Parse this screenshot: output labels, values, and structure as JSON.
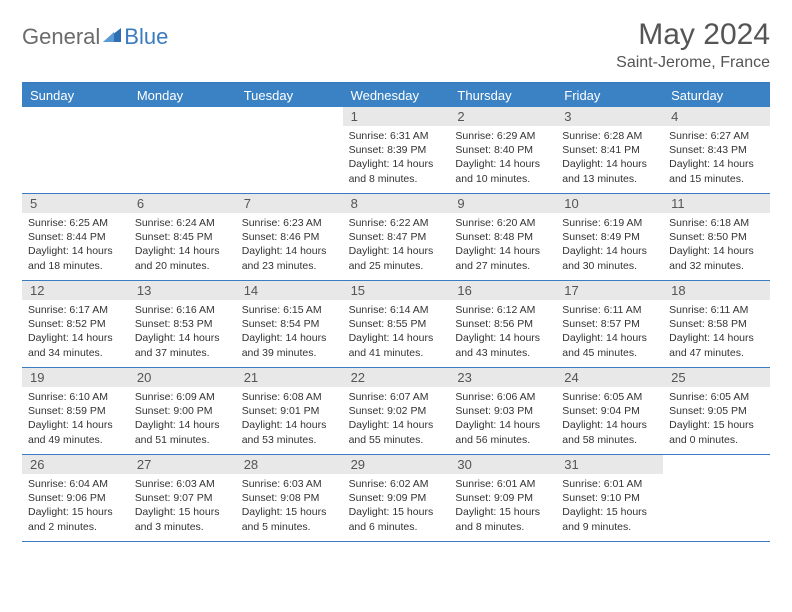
{
  "brand": {
    "text1": "General",
    "text2": "Blue"
  },
  "title": "May 2024",
  "location": "Saint-Jerome, France",
  "colors": {
    "header_bg": "#3b82c4",
    "header_text": "#ffffff",
    "border": "#3b7bbf",
    "daynum_bg": "#e8e8e8",
    "text": "#333333",
    "title_text": "#555555"
  },
  "day_names": [
    "Sunday",
    "Monday",
    "Tuesday",
    "Wednesday",
    "Thursday",
    "Friday",
    "Saturday"
  ],
  "weeks": [
    [
      {
        "n": "",
        "sr": "",
        "ss": "",
        "dl": ""
      },
      {
        "n": "",
        "sr": "",
        "ss": "",
        "dl": ""
      },
      {
        "n": "",
        "sr": "",
        "ss": "",
        "dl": ""
      },
      {
        "n": "1",
        "sr": "Sunrise: 6:31 AM",
        "ss": "Sunset: 8:39 PM",
        "dl": "Daylight: 14 hours and 8 minutes."
      },
      {
        "n": "2",
        "sr": "Sunrise: 6:29 AM",
        "ss": "Sunset: 8:40 PM",
        "dl": "Daylight: 14 hours and 10 minutes."
      },
      {
        "n": "3",
        "sr": "Sunrise: 6:28 AM",
        "ss": "Sunset: 8:41 PM",
        "dl": "Daylight: 14 hours and 13 minutes."
      },
      {
        "n": "4",
        "sr": "Sunrise: 6:27 AM",
        "ss": "Sunset: 8:43 PM",
        "dl": "Daylight: 14 hours and 15 minutes."
      }
    ],
    [
      {
        "n": "5",
        "sr": "Sunrise: 6:25 AM",
        "ss": "Sunset: 8:44 PM",
        "dl": "Daylight: 14 hours and 18 minutes."
      },
      {
        "n": "6",
        "sr": "Sunrise: 6:24 AM",
        "ss": "Sunset: 8:45 PM",
        "dl": "Daylight: 14 hours and 20 minutes."
      },
      {
        "n": "7",
        "sr": "Sunrise: 6:23 AM",
        "ss": "Sunset: 8:46 PM",
        "dl": "Daylight: 14 hours and 23 minutes."
      },
      {
        "n": "8",
        "sr": "Sunrise: 6:22 AM",
        "ss": "Sunset: 8:47 PM",
        "dl": "Daylight: 14 hours and 25 minutes."
      },
      {
        "n": "9",
        "sr": "Sunrise: 6:20 AM",
        "ss": "Sunset: 8:48 PM",
        "dl": "Daylight: 14 hours and 27 minutes."
      },
      {
        "n": "10",
        "sr": "Sunrise: 6:19 AM",
        "ss": "Sunset: 8:49 PM",
        "dl": "Daylight: 14 hours and 30 minutes."
      },
      {
        "n": "11",
        "sr": "Sunrise: 6:18 AM",
        "ss": "Sunset: 8:50 PM",
        "dl": "Daylight: 14 hours and 32 minutes."
      }
    ],
    [
      {
        "n": "12",
        "sr": "Sunrise: 6:17 AM",
        "ss": "Sunset: 8:52 PM",
        "dl": "Daylight: 14 hours and 34 minutes."
      },
      {
        "n": "13",
        "sr": "Sunrise: 6:16 AM",
        "ss": "Sunset: 8:53 PM",
        "dl": "Daylight: 14 hours and 37 minutes."
      },
      {
        "n": "14",
        "sr": "Sunrise: 6:15 AM",
        "ss": "Sunset: 8:54 PM",
        "dl": "Daylight: 14 hours and 39 minutes."
      },
      {
        "n": "15",
        "sr": "Sunrise: 6:14 AM",
        "ss": "Sunset: 8:55 PM",
        "dl": "Daylight: 14 hours and 41 minutes."
      },
      {
        "n": "16",
        "sr": "Sunrise: 6:12 AM",
        "ss": "Sunset: 8:56 PM",
        "dl": "Daylight: 14 hours and 43 minutes."
      },
      {
        "n": "17",
        "sr": "Sunrise: 6:11 AM",
        "ss": "Sunset: 8:57 PM",
        "dl": "Daylight: 14 hours and 45 minutes."
      },
      {
        "n": "18",
        "sr": "Sunrise: 6:11 AM",
        "ss": "Sunset: 8:58 PM",
        "dl": "Daylight: 14 hours and 47 minutes."
      }
    ],
    [
      {
        "n": "19",
        "sr": "Sunrise: 6:10 AM",
        "ss": "Sunset: 8:59 PM",
        "dl": "Daylight: 14 hours and 49 minutes."
      },
      {
        "n": "20",
        "sr": "Sunrise: 6:09 AM",
        "ss": "Sunset: 9:00 PM",
        "dl": "Daylight: 14 hours and 51 minutes."
      },
      {
        "n": "21",
        "sr": "Sunrise: 6:08 AM",
        "ss": "Sunset: 9:01 PM",
        "dl": "Daylight: 14 hours and 53 minutes."
      },
      {
        "n": "22",
        "sr": "Sunrise: 6:07 AM",
        "ss": "Sunset: 9:02 PM",
        "dl": "Daylight: 14 hours and 55 minutes."
      },
      {
        "n": "23",
        "sr": "Sunrise: 6:06 AM",
        "ss": "Sunset: 9:03 PM",
        "dl": "Daylight: 14 hours and 56 minutes."
      },
      {
        "n": "24",
        "sr": "Sunrise: 6:05 AM",
        "ss": "Sunset: 9:04 PM",
        "dl": "Daylight: 14 hours and 58 minutes."
      },
      {
        "n": "25",
        "sr": "Sunrise: 6:05 AM",
        "ss": "Sunset: 9:05 PM",
        "dl": "Daylight: 15 hours and 0 minutes."
      }
    ],
    [
      {
        "n": "26",
        "sr": "Sunrise: 6:04 AM",
        "ss": "Sunset: 9:06 PM",
        "dl": "Daylight: 15 hours and 2 minutes."
      },
      {
        "n": "27",
        "sr": "Sunrise: 6:03 AM",
        "ss": "Sunset: 9:07 PM",
        "dl": "Daylight: 15 hours and 3 minutes."
      },
      {
        "n": "28",
        "sr": "Sunrise: 6:03 AM",
        "ss": "Sunset: 9:08 PM",
        "dl": "Daylight: 15 hours and 5 minutes."
      },
      {
        "n": "29",
        "sr": "Sunrise: 6:02 AM",
        "ss": "Sunset: 9:09 PM",
        "dl": "Daylight: 15 hours and 6 minutes."
      },
      {
        "n": "30",
        "sr": "Sunrise: 6:01 AM",
        "ss": "Sunset: 9:09 PM",
        "dl": "Daylight: 15 hours and 8 minutes."
      },
      {
        "n": "31",
        "sr": "Sunrise: 6:01 AM",
        "ss": "Sunset: 9:10 PM",
        "dl": "Daylight: 15 hours and 9 minutes."
      },
      {
        "n": "",
        "sr": "",
        "ss": "",
        "dl": ""
      }
    ]
  ]
}
